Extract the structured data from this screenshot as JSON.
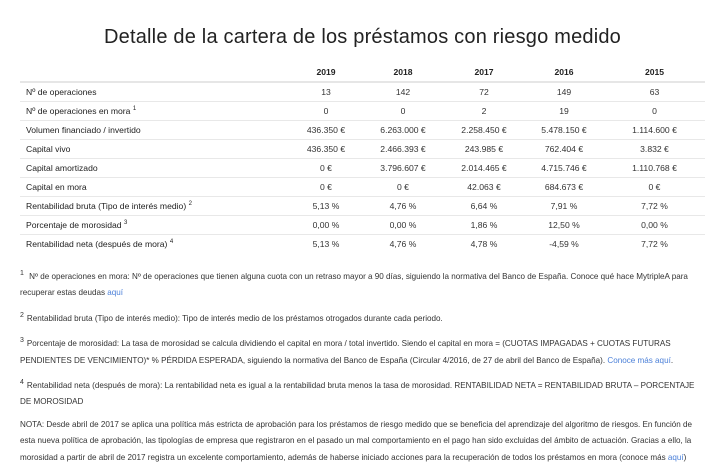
{
  "title": "Detalle de la cartera de los préstamos con riesgo medido",
  "table": {
    "years": [
      "2019",
      "2018",
      "2017",
      "2016",
      "2015"
    ],
    "rows": [
      {
        "label": "Nº de operaciones",
        "sup": "",
        "values": [
          "13",
          "142",
          "72",
          "149",
          "63"
        ]
      },
      {
        "label": "Nº de operaciones en mora",
        "sup": "1",
        "values": [
          "0",
          "0",
          "2",
          "19",
          "0"
        ]
      },
      {
        "label": "Volumen financiado / invertido",
        "sup": "",
        "values": [
          "436.350 €",
          "6.263.000 €",
          "2.258.450 €",
          "5.478.150 €",
          "1.114.600 €"
        ]
      },
      {
        "label": "Capital vivo",
        "sup": "",
        "values": [
          "436.350 €",
          "2.466.393 €",
          "243.985 €",
          "762.404 €",
          "3.832 €"
        ]
      },
      {
        "label": "Capital amortizado",
        "sup": "",
        "values": [
          "0 €",
          "3.796.607 €",
          "2.014.465 €",
          "4.715.746 €",
          "1.110.768 €"
        ]
      },
      {
        "label": "Capital en mora",
        "sup": "",
        "values": [
          "0 €",
          "0 €",
          "42.063 €",
          "684.673 €",
          "0 €"
        ]
      },
      {
        "label": "Rentabilidad bruta (Tipo de interés medio)",
        "sup": "2",
        "values": [
          "5,13 %",
          "4,76 %",
          "6,64 %",
          "7,91 %",
          "7,72 %"
        ]
      },
      {
        "label": "Porcentaje de morosidad",
        "sup": "3",
        "values": [
          "0,00 %",
          "0,00 %",
          "1,86 %",
          "12,50 %",
          "0,00 %"
        ]
      },
      {
        "label": "Rentabilidad neta (después de mora)",
        "sup": "4",
        "values": [
          "5,13 %",
          "4,76 %",
          "4,78 %",
          "-4,59 %",
          "7,72 %"
        ]
      }
    ]
  },
  "notes": {
    "fn1": {
      "sup": "1",
      "text": "Nº de operaciones en mora: Nº de operaciones que tienen alguna cuota con un retraso mayor a 90 días, siguiendo la normativa del Banco de España. Conoce qué hace MytripleA para recuperar estas deudas ",
      "link": "aquí"
    },
    "fn2": {
      "sup": "2",
      "text": "Rentabilidad bruta (Tipo de interés medio): Tipo de interés medio de los préstamos otrogados durante cada periodo."
    },
    "fn3": {
      "sup": "3",
      "text": "Porcentaje de morosidad: La tasa de morosidad se calcula dividiendo el capital en mora / total invertido. Siendo el capital en mora = (CUOTAS IMPAGADAS + CUOTAS FUTURAS PENDIENTES DE VENCIMIENTO)* % PÉRDIDA ESPERADA, siguiendo la normativa del Banco de España (Circular 4/2016, de 27 de abril del Banco de España). ",
      "link": "Conoce más aquí",
      "after": "."
    },
    "fn4": {
      "sup": "4",
      "text": "Rentabilidad neta (después de mora): La rentabilidad neta es igual a la rentabilidad bruta menos la tasa de morosidad. RENTABILIDAD NETA = RENTABILIDAD BRUTA – PORCENTAJE DE MOROSIDAD"
    },
    "nota": {
      "text": "NOTA: Desde abril de 2017 se aplica una política más estricta de aprobación para los préstamos de riesgo medido que se beneficia del aprendizaje del algoritmo de riesgos. En función de esta nueva política de aprobación, las tipologías de empresa que registraron en el pasado un mal comportamiento en el pago han sido excluidas del ámbito de actuación. Gracias a ello, la morosidad a partir de abril de 2017 registra un excelente comportamiento, además de haberse iniciado acciones para la recuperación de todos los préstamos en mora (conoce más ",
      "link": "aquí",
      "after": ")"
    }
  },
  "colors": {
    "link": "#4a7fd8",
    "text": "#333333"
  }
}
